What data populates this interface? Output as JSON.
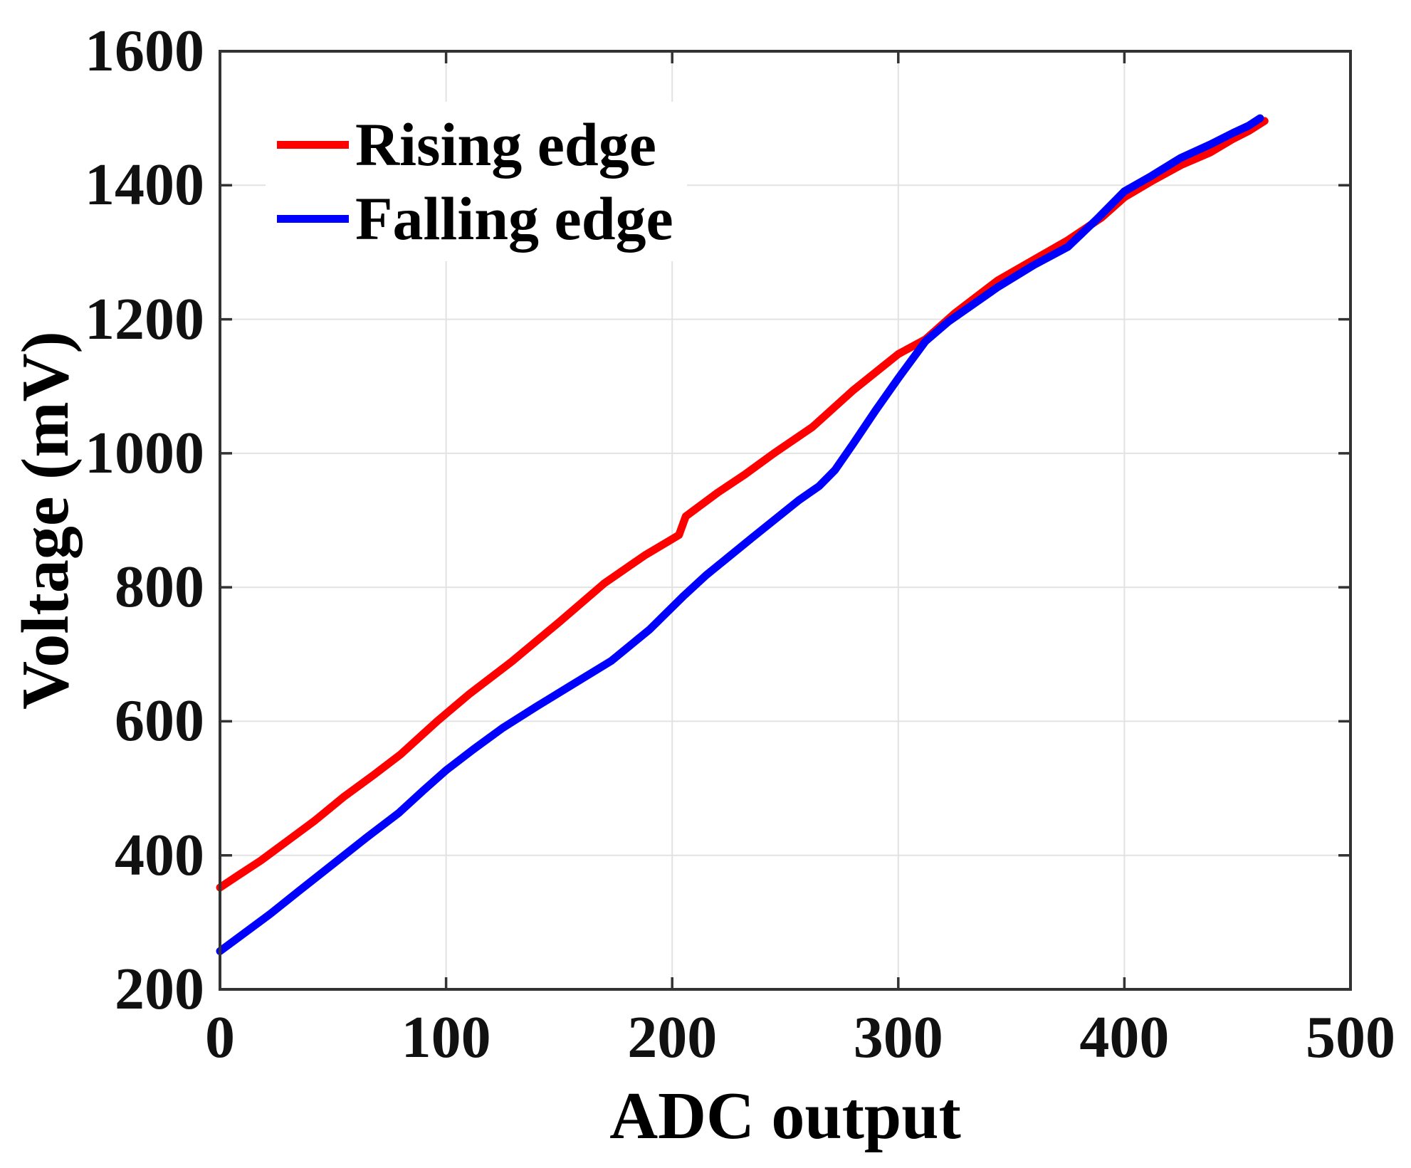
{
  "chart_data": {
    "type": "line",
    "title": "",
    "xlabel": "ADC output",
    "ylabel": "Voltage (mV)",
    "xlim": [
      0,
      500
    ],
    "ylim": [
      200,
      1600
    ],
    "x_ticks": [
      0,
      100,
      200,
      300,
      400,
      500
    ],
    "y_ticks": [
      200,
      400,
      600,
      800,
      1000,
      1200,
      1400,
      1600
    ],
    "grid": true,
    "legend_position": "top-left",
    "series": [
      {
        "name": "Rising edge",
        "color": "#ff0000",
        "points": [
          [
            0,
            352
          ],
          [
            8,
            370
          ],
          [
            18,
            392
          ],
          [
            30,
            422
          ],
          [
            42,
            452
          ],
          [
            55,
            488
          ],
          [
            68,
            520
          ],
          [
            80,
            551
          ],
          [
            96,
            600
          ],
          [
            110,
            640
          ],
          [
            129,
            689
          ],
          [
            150,
            748
          ],
          [
            170,
            806
          ],
          [
            188,
            848
          ],
          [
            203,
            878
          ],
          [
            206,
            906
          ],
          [
            220,
            941
          ],
          [
            232,
            968
          ],
          [
            245,
            1000
          ],
          [
            262,
            1039
          ],
          [
            280,
            1094
          ],
          [
            300,
            1148
          ],
          [
            312,
            1170
          ],
          [
            325,
            1209
          ],
          [
            344,
            1258
          ],
          [
            360,
            1289
          ],
          [
            375,
            1318
          ],
          [
            390,
            1352
          ],
          [
            400,
            1382
          ],
          [
            412,
            1406
          ],
          [
            425,
            1430
          ],
          [
            438,
            1449
          ],
          [
            448,
            1469
          ],
          [
            455,
            1481
          ],
          [
            462,
            1496
          ]
        ]
      },
      {
        "name": "Falling edge",
        "color": "#0000ff",
        "points": [
          [
            0,
            257
          ],
          [
            10,
            282
          ],
          [
            22,
            312
          ],
          [
            35,
            347
          ],
          [
            50,
            387
          ],
          [
            65,
            427
          ],
          [
            79,
            463
          ],
          [
            90,
            497
          ],
          [
            100,
            527
          ],
          [
            112,
            558
          ],
          [
            125,
            590
          ],
          [
            140,
            622
          ],
          [
            155,
            653
          ],
          [
            173,
            690
          ],
          [
            190,
            737
          ],
          [
            205,
            787
          ],
          [
            215,
            818
          ],
          [
            235,
            873
          ],
          [
            256,
            930
          ],
          [
            265,
            951
          ],
          [
            272,
            975
          ],
          [
            280,
            1014
          ],
          [
            290,
            1064
          ],
          [
            300,
            1112
          ],
          [
            312,
            1167
          ],
          [
            322,
            1196
          ],
          [
            344,
            1248
          ],
          [
            360,
            1281
          ],
          [
            375,
            1308
          ],
          [
            388,
            1350
          ],
          [
            400,
            1391
          ],
          [
            412,
            1414
          ],
          [
            425,
            1441
          ],
          [
            438,
            1461
          ],
          [
            448,
            1478
          ],
          [
            455,
            1489
          ],
          [
            460,
            1500
          ]
        ]
      }
    ],
    "colors": {
      "axis": "#333333",
      "grid": "#e2e2e2",
      "tick_text": "#111111",
      "label_text": "#000000",
      "background": "#ffffff"
    }
  }
}
